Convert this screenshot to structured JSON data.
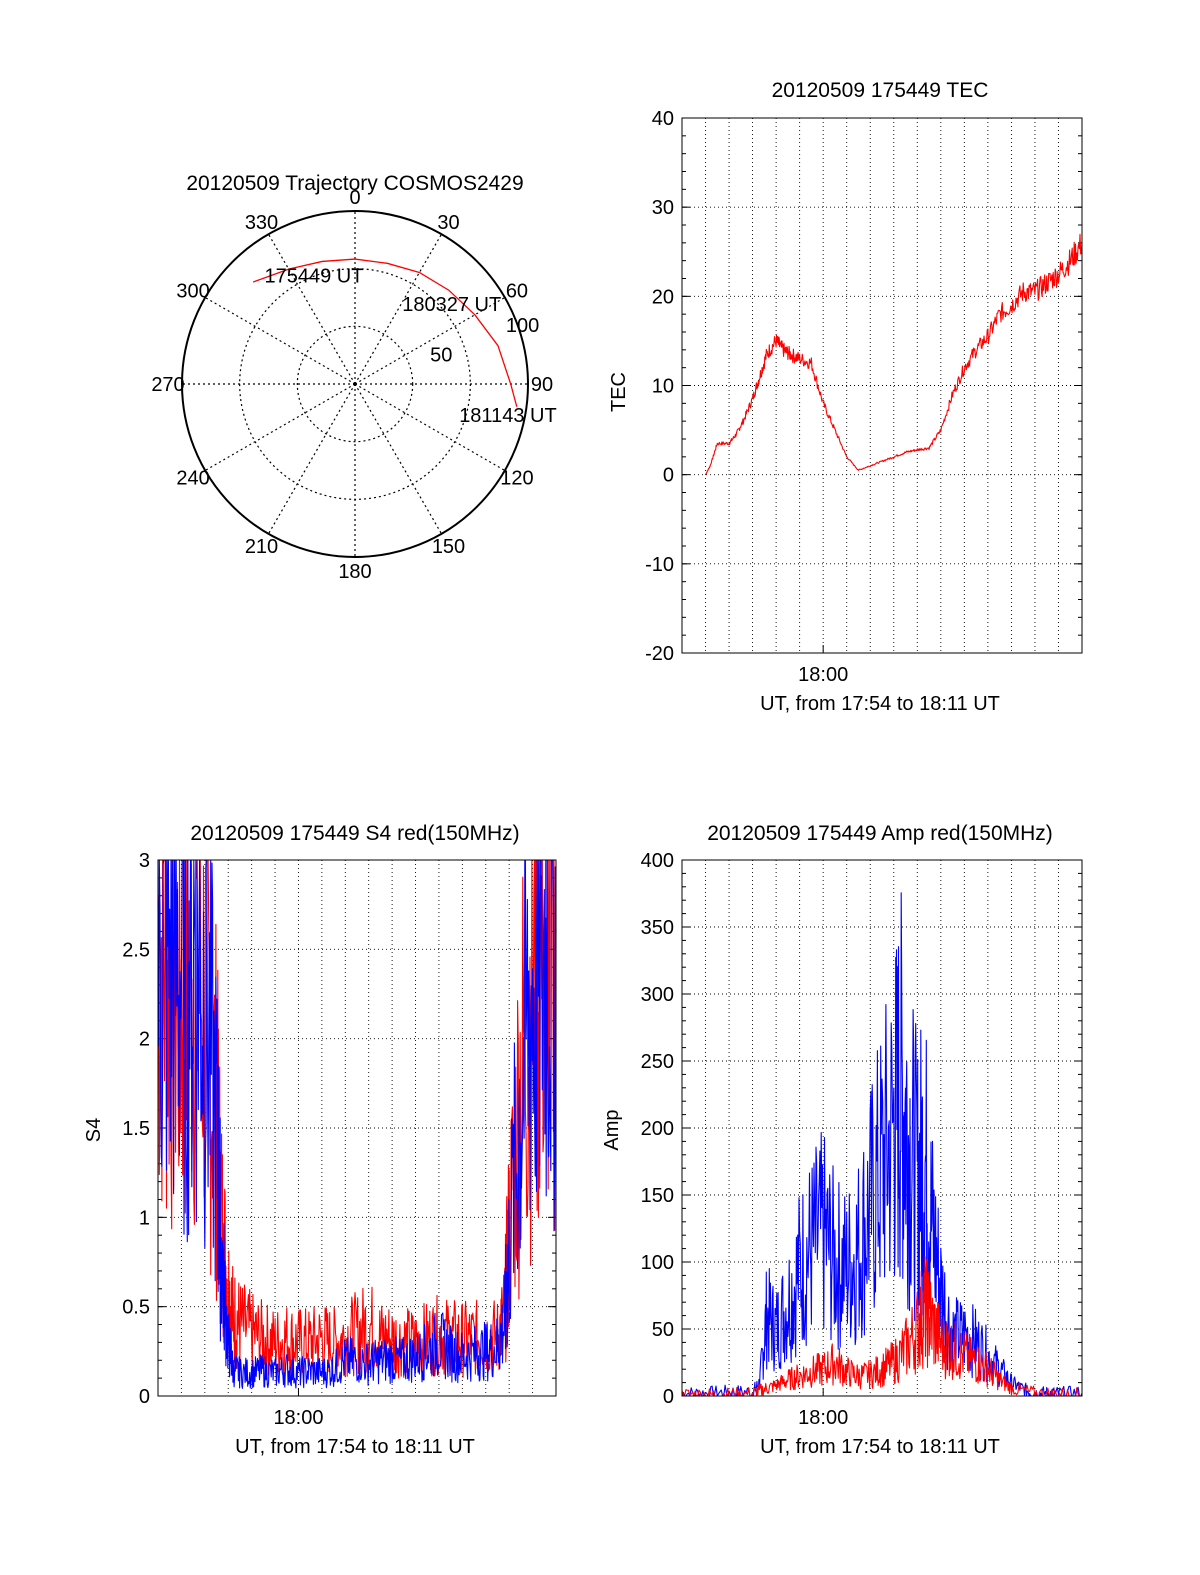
{
  "chart_data": [
    {
      "id": "trajectory",
      "type": "polar",
      "title": "20120509 Trajectory COSMOS2429",
      "azimuth_labels": [
        "0",
        "30",
        "60",
        "90",
        "120",
        "150",
        "180",
        "210",
        "240",
        "270",
        "300",
        "330"
      ],
      "radial_labels": [
        {
          "text": "50",
          "zenith_deg": 45
        },
        {
          "text": "100",
          "zenith_deg": 90
        }
      ],
      "trajectory_points_az_el": [
        {
          "az": -45,
          "el": 15
        },
        {
          "az": -30,
          "el": 21
        },
        {
          "az": -15,
          "el": 24
        },
        {
          "az": 0,
          "el": 25
        },
        {
          "az": 15,
          "el": 25
        },
        {
          "az": 30,
          "el": 23
        },
        {
          "az": 45,
          "el": 21
        },
        {
          "az": 60,
          "el": 18
        },
        {
          "az": 75,
          "el": 13
        },
        {
          "az": 90,
          "el": 9
        },
        {
          "az": 98,
          "el": 5
        }
      ],
      "annotations": [
        {
          "text": "175449 UT",
          "az": -22,
          "el": 33
        },
        {
          "text": "180327 UT",
          "az": 53,
          "el": 27
        },
        {
          "text": "181143 UT",
          "az": 104,
          "el": 8
        }
      ],
      "series_color": "#ff0000"
    },
    {
      "id": "tec",
      "type": "line",
      "title": "20120509 175449 TEC",
      "ylabel": "TEC",
      "xlabel": "UT, from 17:54 to 18:11 UT",
      "x_tick_labels": [
        {
          "label": "18:00",
          "minutes": 6
        }
      ],
      "xlim": [
        0,
        17
      ],
      "ylim": [
        -20,
        40
      ],
      "yticks": [
        -20,
        -10,
        0,
        10,
        20,
        30,
        40
      ],
      "grid": true,
      "series": [
        {
          "color": "#ff0000",
          "x": [
            1,
            1.2,
            1.5,
            2,
            2.3,
            2.6,
            3,
            3.3,
            3.6,
            4,
            4.3,
            4.6,
            5,
            5.5,
            6,
            6.5,
            7,
            7.5,
            8,
            8.5,
            9,
            9.5,
            10,
            10.5,
            11,
            11.5,
            12,
            12.5,
            13,
            13.5,
            14,
            14.5,
            15,
            15.5,
            16,
            16.5,
            17
          ],
          "y": [
            0,
            1,
            3.5,
            3.5,
            4.5,
            6,
            8.5,
            11,
            13.5,
            15,
            14,
            13.5,
            13,
            12.5,
            8,
            5,
            2,
            0.5,
            1,
            1.5,
            2,
            2.5,
            2.8,
            3,
            5,
            9,
            12,
            14,
            15.5,
            18,
            19,
            20.5,
            20.5,
            21.5,
            22.5,
            24,
            26
          ]
        }
      ]
    },
    {
      "id": "s4",
      "type": "line",
      "title": "20120509 175449 S4 red(150MHz)",
      "ylabel": "S4",
      "xlabel": "UT, from 17:54 to 18:11 UT",
      "x_tick_labels": [
        {
          "label": "18:00",
          "minutes": 6
        }
      ],
      "xlim": [
        0,
        17
      ],
      "ylim": [
        0,
        3
      ],
      "yticks": [
        0,
        0.5,
        1,
        1.5,
        2,
        2.5,
        3
      ],
      "grid": true,
      "series": [
        {
          "color": "#ff0000",
          "x": [
            0,
            0.5,
            1,
            1.5,
            2,
            2.5,
            2.7,
            3,
            3.2,
            3.5,
            4,
            4.5,
            5,
            5.5,
            6,
            6.5,
            7,
            7.5,
            8,
            8.5,
            9,
            9.5,
            10,
            10.5,
            11,
            11.5,
            12,
            12.5,
            13,
            13.5,
            14,
            14.5,
            14.8,
            15,
            15.5,
            16,
            16.5,
            17
          ],
          "y": [
            2.6,
            2.4,
            2.3,
            2.5,
            2.2,
            1.6,
            1,
            0.6,
            0.45,
            0.4,
            0.35,
            0.32,
            0.3,
            0.32,
            0.3,
            0.3,
            0.32,
            0.3,
            0.33,
            0.35,
            0.4,
            0.33,
            0.32,
            0.3,
            0.3,
            0.32,
            0.34,
            0.33,
            0.32,
            0.32,
            0.33,
            0.33,
            0.45,
            0.9,
            1.8,
            2.3,
            2.5,
            2.6
          ]
        },
        {
          "color": "#0000ff",
          "x": [
            0,
            0.5,
            1,
            1.5,
            2,
            2.5,
            2.7,
            3,
            3.2,
            3.5,
            4,
            4.5,
            5,
            5.5,
            6,
            6.5,
            7,
            7.5,
            8,
            8.5,
            9,
            9.5,
            10,
            10.5,
            11,
            11.5,
            12,
            12.5,
            13,
            13.5,
            14,
            14.5,
            14.8,
            15,
            15.5,
            16,
            16.5,
            17
          ],
          "y": [
            2.5,
            2.5,
            2.4,
            2.6,
            2.3,
            1.5,
            0.8,
            0.3,
            0.15,
            0.13,
            0.13,
            0.14,
            0.13,
            0.15,
            0.13,
            0.14,
            0.13,
            0.15,
            0.2,
            0.2,
            0.18,
            0.2,
            0.2,
            0.2,
            0.22,
            0.25,
            0.3,
            0.24,
            0.22,
            0.24,
            0.25,
            0.28,
            0.4,
            0.8,
            1.7,
            2.3,
            2.5,
            2.6
          ]
        }
      ]
    },
    {
      "id": "amp",
      "type": "line",
      "title": "20120509 175449 Amp red(150MHz)",
      "ylabel": "Amp",
      "xlabel": "UT, from 17:54 to 18:11 UT",
      "x_tick_labels": [
        {
          "label": "18:00",
          "minutes": 6
        }
      ],
      "xlim": [
        0,
        17
      ],
      "ylim": [
        0,
        400
      ],
      "yticks": [
        0,
        50,
        100,
        150,
        200,
        250,
        300,
        350,
        400
      ],
      "grid": true,
      "series": [
        {
          "color": "#0000ff",
          "x": [
            0,
            1,
            2,
            3,
            3.3,
            3.6,
            4,
            4.5,
            5,
            5.5,
            6,
            6.5,
            7,
            7.5,
            8,
            8.5,
            9,
            9.3,
            9.6,
            10,
            10.3,
            10.6,
            11,
            11.5,
            12,
            12.5,
            13,
            13.5,
            14,
            14.5,
            15,
            15.5,
            16,
            17
          ],
          "y": [
            2,
            2,
            3,
            3,
            10,
            60,
            50,
            70,
            95,
            110,
            120,
            100,
            95,
            110,
            140,
            170,
            200,
            230,
            200,
            160,
            180,
            130,
            80,
            45,
            45,
            40,
            30,
            20,
            10,
            5,
            2,
            2,
            2,
            2
          ]
        },
        {
          "color": "#ff0000",
          "x": [
            0,
            1,
            2,
            3,
            3.5,
            4,
            4.5,
            5,
            5.5,
            6,
            6.5,
            7,
            7.5,
            8,
            8.5,
            9,
            9.5,
            10,
            10.3,
            10.6,
            11,
            11.5,
            12,
            12.5,
            13,
            13.5,
            14,
            15,
            16,
            17
          ],
          "y": [
            1,
            1,
            1,
            2,
            5,
            8,
            12,
            15,
            18,
            20,
            25,
            18,
            15,
            16,
            20,
            25,
            35,
            50,
            65,
            55,
            40,
            35,
            30,
            25,
            20,
            12,
            6,
            2,
            1,
            1
          ]
        }
      ]
    }
  ]
}
